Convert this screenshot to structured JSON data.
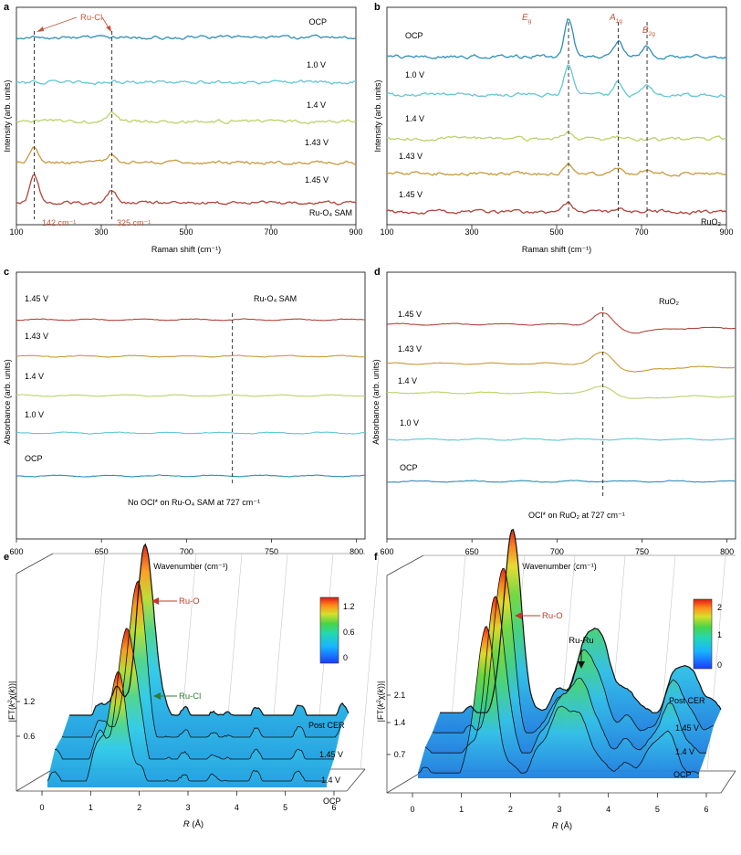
{
  "colors": {
    "OCP": "#2f8fb5",
    "1.0 V": "#62c7d6",
    "1.4 V": "#b8d36a",
    "1.43 V": "#c89a3c",
    "1.45 V": "#b0463a",
    "annotation": "#c0583a",
    "ruo_arrow": "#c0392b",
    "rucl_arrow": "#2e7d32"
  },
  "chart_data": [
    {
      "panel": "a",
      "type": "line",
      "xlabel": "Raman shift (cm⁻¹)",
      "ylabel": "Intensity (arb. units)",
      "xlim": [
        100,
        900
      ],
      "xticks": [
        "100",
        "300",
        "500",
        "700",
        "900"
      ],
      "series": [
        {
          "name": "OCP",
          "baseline_level": 5,
          "peaks": []
        },
        {
          "name": "1.0 V",
          "baseline_level": 4,
          "peaks": []
        },
        {
          "name": "1.4 V",
          "baseline_level": 3,
          "peaks": [
            [
              325,
              0.15
            ]
          ]
        },
        {
          "name": "1.43 V",
          "baseline_level": 2,
          "peaks": [
            [
              142,
              0.25
            ],
            [
              325,
              0.15
            ]
          ]
        },
        {
          "name": "1.45 V",
          "baseline_level": 1,
          "peaks": [
            [
              142,
              0.45
            ],
            [
              325,
              0.2
            ]
          ]
        }
      ],
      "dashed_lines_x": [
        142,
        325
      ],
      "annotations": {
        "species": "Ru-Cl",
        "peak1": "142 cm⁻¹",
        "peak2": "325 cm⁻¹",
        "sample": "Ru-O₄ SAM"
      }
    },
    {
      "panel": "b",
      "type": "line",
      "xlabel": "Raman shift (cm⁻¹)",
      "ylabel": "Intensity (arb. units)",
      "xlim": [
        100,
        900
      ],
      "xticks": [
        "100",
        "300",
        "500",
        "700",
        "900"
      ],
      "series": [
        {
          "name": "OCP",
          "baseline_level": 5,
          "peaks": [
            [
              528,
              1.9
            ],
            [
              645,
              0.75
            ],
            [
              713,
              0.5
            ]
          ]
        },
        {
          "name": "1.0 V",
          "baseline_level": 4,
          "peaks": [
            [
              528,
              1.5
            ],
            [
              645,
              0.7
            ],
            [
              713,
              0.5
            ]
          ]
        },
        {
          "name": "1.4 V",
          "baseline_level": 3,
          "peaks": [
            [
              528,
              0.3
            ],
            [
              645,
              0.1
            ]
          ]
        },
        {
          "name": "1.43 V",
          "baseline_level": 2,
          "peaks": [
            [
              528,
              0.45
            ],
            [
              645,
              0.3
            ],
            [
              713,
              0.15
            ]
          ]
        },
        {
          "name": "1.45 V",
          "baseline_level": 1,
          "peaks": [
            [
              528,
              0.45
            ],
            [
              645,
              0.2
            ],
            [
              713,
              0.1
            ]
          ]
        }
      ],
      "dashed_lines_x": [
        528,
        645,
        713
      ],
      "annotations": {
        "peak1": "E",
        "peak1_sub": "g",
        "peak2": "A",
        "peak2_sub": "1g",
        "peak3": "B",
        "peak3_sub": "2g",
        "sample": "RuO₂"
      }
    },
    {
      "panel": "c",
      "type": "line",
      "xlabel": "Wavenumber (cm⁻¹)",
      "ylabel": "Absorbance (arb. units)",
      "xlim": [
        600,
        805
      ],
      "xticks": [
        "600",
        "650",
        "700",
        "750",
        "800"
      ],
      "series": [
        {
          "name": "1.45 V",
          "baseline_level": 5,
          "peaks": []
        },
        {
          "name": "1.43 V",
          "baseline_level": 4,
          "peaks": []
        },
        {
          "name": "1.4 V",
          "baseline_level": 3,
          "peaks": []
        },
        {
          "name": "1.0 V",
          "baseline_level": 2,
          "peaks": []
        },
        {
          "name": "OCP",
          "baseline_level": 1,
          "peaks": []
        }
      ],
      "dashed_lines_x": [
        727
      ],
      "annotations": {
        "sample": "Ru-O₄ SAM",
        "note": "No OCl* on Ru-O₄ SAM at 727 cm⁻¹"
      }
    },
    {
      "panel": "d",
      "type": "line",
      "xlabel": "Wavenumber (cm⁻¹)",
      "ylabel": "Absorbance (arb. units)",
      "xlim": [
        600,
        805
      ],
      "xticks": [
        "600",
        "650",
        "700",
        "750",
        "800"
      ],
      "series": [
        {
          "name": "1.45 V",
          "baseline_level": 5,
          "peaks": [
            [
              727,
              0.5
            ]
          ]
        },
        {
          "name": "1.43 V",
          "baseline_level": 4,
          "peaks": [
            [
              727,
              0.5
            ]
          ]
        },
        {
          "name": "1.4 V",
          "baseline_level": 3,
          "peaks": [
            [
              727,
              0.3
            ]
          ]
        },
        {
          "name": "1.0 V",
          "baseline_level": 2,
          "peaks": []
        },
        {
          "name": "OCP",
          "baseline_level": 1,
          "peaks": []
        }
      ],
      "dashed_lines_x": [
        727
      ],
      "annotations": {
        "sample": "RuO₂",
        "note": "OCl* on RuO₂ at 727 cm⁻¹"
      }
    },
    {
      "panel": "e",
      "type": "area",
      "xlabel": "R (Å)",
      "ylabel": "|FT(k²χ(k))|",
      "xlim": [
        0,
        6
      ],
      "xticks": [
        "0",
        "1",
        "2",
        "3",
        "4",
        "5",
        "6"
      ],
      "yticks": [
        "0.6",
        "1.2"
      ],
      "series": [
        {
          "name": "OCP",
          "peaks": [
            [
              1.5,
              0.85
            ]
          ]
        },
        {
          "name": "1.4 V",
          "peaks": [
            [
              1.55,
              1.0
            ]
          ]
        },
        {
          "name": "1.45 V",
          "peaks": [
            [
              1.6,
              1.1
            ]
          ]
        },
        {
          "name": "Post CER",
          "peaks": [
            [
              1.65,
              1.2
            ]
          ]
        }
      ],
      "colorbar": {
        "min": 0,
        "max": 1.2,
        "ticks": [
          "1.2",
          "0.6",
          "0"
        ]
      },
      "annotations": {
        "ruo": "Ru-O",
        "rucl": "Ru-Cl"
      }
    },
    {
      "panel": "f",
      "type": "area",
      "xlabel": "R (Å)",
      "ylabel": "|FT(k²χ(k))|",
      "xlim": [
        0,
        6
      ],
      "xticks": [
        "0",
        "1",
        "2",
        "3",
        "4",
        "5",
        "6"
      ],
      "yticks": [
        "0.7",
        "1.4",
        "2.1"
      ],
      "series": [
        {
          "name": "OCP",
          "peaks": [
            [
              1.45,
              1.9
            ],
            [
              3.2,
              0.9
            ],
            [
              5.2,
              0.5
            ]
          ]
        },
        {
          "name": "1.4 V",
          "peaks": [
            [
              1.5,
              2.0
            ],
            [
              3.2,
              0.95
            ],
            [
              5.2,
              0.55
            ]
          ]
        },
        {
          "name": "1.45 V",
          "peaks": [
            [
              1.5,
              2.1
            ],
            [
              3.25,
              1.0
            ],
            [
              5.2,
              0.6
            ]
          ]
        },
        {
          "name": "Post CER",
          "peaks": [
            [
              1.55,
              2.2
            ],
            [
              3.3,
              1.05
            ],
            [
              5.25,
              0.65
            ]
          ]
        }
      ],
      "colorbar": {
        "min": 0,
        "max": 2,
        "ticks": [
          "2",
          "1",
          "0"
        ]
      },
      "annotations": {
        "ruo": "Ru-O",
        "ruru": "Ru-Ru"
      }
    }
  ],
  "panel_labels": [
    "a",
    "b",
    "c",
    "d",
    "e",
    "f"
  ]
}
